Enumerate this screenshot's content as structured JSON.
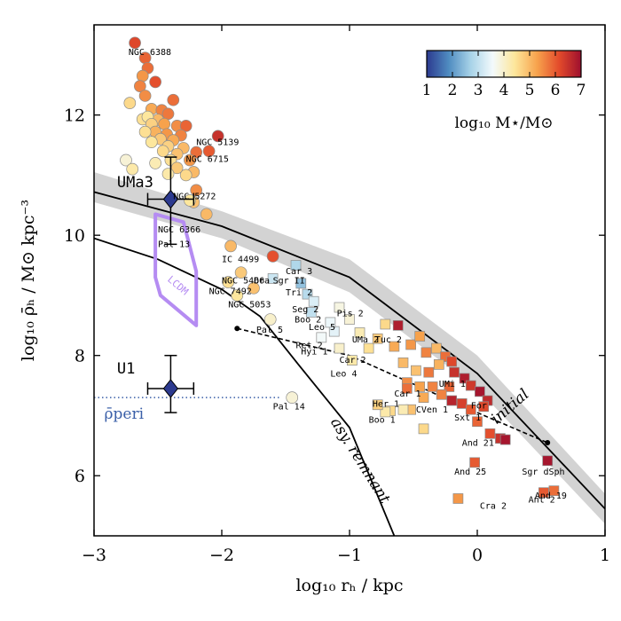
{
  "chart_data": {
    "type": "scatter",
    "xlabel": "log₁₀ rₕ / kpc",
    "ylabel": "log₁₀ ρ̄ₕ / M⊙ kpc⁻³",
    "xlim": [
      -3,
      1
    ],
    "ylim": [
      5,
      13.5
    ],
    "x_ticks": [
      -3,
      -2,
      -1,
      0,
      1
    ],
    "x_tick_labels": [
      "−3",
      "−2",
      "−1",
      "0",
      "1"
    ],
    "y_ticks": [
      6,
      8,
      10,
      12
    ],
    "y_tick_labels": [
      "6",
      "8",
      "10",
      "12"
    ],
    "colorbar": {
      "label": "log₁₀ M⋆/M⊙",
      "min": 1,
      "max": 7,
      "ticks": [
        "1",
        "2",
        "3",
        "4",
        "5",
        "6",
        "7"
      ],
      "colormap": [
        "#2c3a8f",
        "#4f8cc1",
        "#a8d3e8",
        "#f3fafc",
        "#fde69a",
        "#f7a34d",
        "#e34b2b",
        "#9e0f2e"
      ],
      "placement": "top-right"
    },
    "globular_clusters": [
      {
        "x": -2.68,
        "y": 13.2,
        "c": 6.2
      },
      {
        "x": -2.6,
        "y": 12.95,
        "c": 5.9
      },
      {
        "x": -2.58,
        "y": 12.78,
        "c": 5.8
      },
      {
        "x": -2.62,
        "y": 12.65,
        "c": 5.4
      },
      {
        "x": -2.64,
        "y": 12.48,
        "c": 5.6
      },
      {
        "x": -2.52,
        "y": 12.55,
        "c": 6.1
      },
      {
        "x": -2.6,
        "y": 12.32,
        "c": 5.5
      },
      {
        "x": -2.38,
        "y": 12.25,
        "c": 5.8
      },
      {
        "x": -2.72,
        "y": 12.2,
        "c": 4.6
      },
      {
        "x": -2.55,
        "y": 12.1,
        "c": 5.2
      },
      {
        "x": -2.47,
        "y": 12.08,
        "c": 5.6
      },
      {
        "x": -2.42,
        "y": 12.02,
        "c": 5.7
      },
      {
        "x": -2.5,
        "y": 11.92,
        "c": 5.0
      },
      {
        "x": -2.62,
        "y": 11.93,
        "c": 4.5
      },
      {
        "x": -2.58,
        "y": 11.97,
        "c": 4.4
      },
      {
        "x": -2.55,
        "y": 11.85,
        "c": 4.7
      },
      {
        "x": -2.45,
        "y": 11.85,
        "c": 5.3
      },
      {
        "x": -2.35,
        "y": 11.82,
        "c": 5.5
      },
      {
        "x": -2.28,
        "y": 11.82,
        "c": 5.9
      },
      {
        "x": -2.52,
        "y": 11.72,
        "c": 5.1
      },
      {
        "x": -2.6,
        "y": 11.72,
        "c": 4.5
      },
      {
        "x": -2.43,
        "y": 11.68,
        "c": 5.4
      },
      {
        "x": -2.32,
        "y": 11.66,
        "c": 5.6
      },
      {
        "x": -2.48,
        "y": 11.6,
        "c": 4.8
      },
      {
        "x": -2.38,
        "y": 11.58,
        "c": 5.2
      },
      {
        "x": -2.55,
        "y": 11.55,
        "c": 4.4
      },
      {
        "x": -2.42,
        "y": 11.48,
        "c": 4.7
      },
      {
        "x": -2.3,
        "y": 11.45,
        "c": 5.0
      },
      {
        "x": -2.46,
        "y": 11.4,
        "c": 4.6
      },
      {
        "x": -2.35,
        "y": 11.35,
        "c": 4.9
      },
      {
        "x": -2.2,
        "y": 11.38,
        "c": 5.8
      },
      {
        "x": -2.25,
        "y": 11.25,
        "c": 5.4
      },
      {
        "x": -2.4,
        "y": 11.25,
        "c": 4.5
      },
      {
        "x": -2.52,
        "y": 11.2,
        "c": 4.2
      },
      {
        "x": -2.75,
        "y": 11.25,
        "c": 3.9
      },
      {
        "x": -2.7,
        "y": 11.1,
        "c": 4.3
      },
      {
        "x": -2.35,
        "y": 11.12,
        "c": 4.8
      },
      {
        "x": -2.22,
        "y": 11.05,
        "c": 5.0
      },
      {
        "x": -2.28,
        "y": 11.0,
        "c": 4.6
      },
      {
        "x": -2.42,
        "y": 11.02,
        "c": 4.3
      },
      {
        "x": -2.2,
        "y": 10.75,
        "c": 5.5
      },
      {
        "x": -2.22,
        "y": 10.55,
        "c": 4.9
      },
      {
        "x": -2.25,
        "y": 10.58,
        "c": 4.4
      },
      {
        "x": -2.12,
        "y": 10.35,
        "c": 5.0
      },
      {
        "x": -1.93,
        "y": 9.82,
        "c": 5.0
      },
      {
        "x": -1.85,
        "y": 9.38,
        "c": 4.8
      },
      {
        "x": -1.95,
        "y": 9.22,
        "c": 4.5
      },
      {
        "x": -1.75,
        "y": 9.12,
        "c": 4.9
      },
      {
        "x": -1.88,
        "y": 9.0,
        "c": 4.4
      },
      {
        "x": -1.62,
        "y": 8.6,
        "c": 4.0
      },
      {
        "x": -1.45,
        "y": 7.3,
        "c": 3.9
      },
      {
        "x": -2.03,
        "y": 11.65,
        "c": 6.5
      },
      {
        "x": -2.1,
        "y": 11.4,
        "c": 6.0
      },
      {
        "x": -1.6,
        "y": 9.65,
        "c": 6.1
      }
    ],
    "dwarf_galaxies": [
      {
        "x": -1.6,
        "y": 9.28,
        "c": 3.1
      },
      {
        "x": -1.42,
        "y": 9.5,
        "c": 2.8
      },
      {
        "x": -1.38,
        "y": 9.2,
        "c": 2.5
      },
      {
        "x": -1.33,
        "y": 9.02,
        "c": 2.9
      },
      {
        "x": -1.28,
        "y": 8.9,
        "c": 3.3
      },
      {
        "x": -1.3,
        "y": 8.72,
        "c": 3.0
      },
      {
        "x": -1.08,
        "y": 8.8,
        "c": 3.8
      },
      {
        "x": -1.0,
        "y": 8.6,
        "c": 3.9
      },
      {
        "x": -1.12,
        "y": 8.4,
        "c": 3.4
      },
      {
        "x": -1.22,
        "y": 8.3,
        "c": 3.6
      },
      {
        "x": -1.15,
        "y": 8.55,
        "c": 3.5
      },
      {
        "x": -1.08,
        "y": 8.12,
        "c": 4.0
      },
      {
        "x": -0.92,
        "y": 8.38,
        "c": 4.2
      },
      {
        "x": -0.85,
        "y": 8.12,
        "c": 4.5
      },
      {
        "x": -0.98,
        "y": 7.92,
        "c": 4.3
      },
      {
        "x": -0.72,
        "y": 8.52,
        "c": 4.6
      },
      {
        "x": -0.78,
        "y": 8.28,
        "c": 4.8
      },
      {
        "x": -0.62,
        "y": 8.5,
        "c": 6.8
      },
      {
        "x": -0.65,
        "y": 8.15,
        "c": 5.2
      },
      {
        "x": -0.58,
        "y": 7.88,
        "c": 5.0
      },
      {
        "x": -0.52,
        "y": 8.18,
        "c": 5.4
      },
      {
        "x": -0.45,
        "y": 8.32,
        "c": 5.3
      },
      {
        "x": -0.4,
        "y": 8.05,
        "c": 5.6
      },
      {
        "x": -0.32,
        "y": 8.12,
        "c": 5.0
      },
      {
        "x": -0.25,
        "y": 7.98,
        "c": 5.8
      },
      {
        "x": -0.2,
        "y": 7.9,
        "c": 6.2
      },
      {
        "x": -0.3,
        "y": 7.85,
        "c": 5.1
      },
      {
        "x": -0.38,
        "y": 7.72,
        "c": 5.7
      },
      {
        "x": -0.48,
        "y": 7.75,
        "c": 4.9
      },
      {
        "x": -0.55,
        "y": 7.55,
        "c": 5.5
      },
      {
        "x": -0.45,
        "y": 7.48,
        "c": 5.3
      },
      {
        "x": -0.35,
        "y": 7.48,
        "c": 5.6
      },
      {
        "x": -0.18,
        "y": 7.72,
        "c": 6.5
      },
      {
        "x": -0.1,
        "y": 7.62,
        "c": 6.8
      },
      {
        "x": -0.05,
        "y": 7.5,
        "c": 6.4
      },
      {
        "x": -0.22,
        "y": 7.48,
        "c": 5.9
      },
      {
        "x": -0.28,
        "y": 7.35,
        "c": 5.6
      },
      {
        "x": -0.42,
        "y": 7.3,
        "c": 5.2
      },
      {
        "x": -0.2,
        "y": 7.25,
        "c": 6.7
      },
      {
        "x": -0.12,
        "y": 7.2,
        "c": 6.3
      },
      {
        "x": 0.02,
        "y": 7.4,
        "c": 6.9
      },
      {
        "x": 0.08,
        "y": 7.25,
        "c": 6.6
      },
      {
        "x": -0.05,
        "y": 7.1,
        "c": 6.0
      },
      {
        "x": -0.55,
        "y": 7.45,
        "c": 5.8
      },
      {
        "x": -0.52,
        "y": 7.1,
        "c": 4.9
      },
      {
        "x": -0.58,
        "y": 7.1,
        "c": 4.2
      },
      {
        "x": -0.68,
        "y": 7.08,
        "c": 4.6
      },
      {
        "x": -0.72,
        "y": 7.06,
        "c": 4.3
      },
      {
        "x": -0.78,
        "y": 7.18,
        "c": 4.7
      },
      {
        "x": -0.42,
        "y": 6.78,
        "c": 4.6
      },
      {
        "x": 0.05,
        "y": 7.15,
        "c": 6.2
      },
      {
        "x": 0.0,
        "y": 6.9,
        "c": 5.9
      },
      {
        "x": 0.1,
        "y": 6.7,
        "c": 6.1
      },
      {
        "x": 0.18,
        "y": 6.62,
        "c": 6.5
      },
      {
        "x": 0.22,
        "y": 6.6,
        "c": 6.9
      },
      {
        "x": 0.55,
        "y": 6.25,
        "c": 6.9
      },
      {
        "x": -0.02,
        "y": 6.22,
        "c": 6.0
      },
      {
        "x": 0.52,
        "y": 5.72,
        "c": 6.0
      },
      {
        "x": 0.6,
        "y": 5.75,
        "c": 5.8
      },
      {
        "x": -0.15,
        "y": 5.62,
        "c": 5.4
      }
    ],
    "named_points": [
      {
        "label": "UMa3",
        "x": -2.4,
        "y": 10.6,
        "xerr": 0.18,
        "yerr_up": 0.7,
        "yerr_down": 0.75,
        "color": "#2c3a8f"
      },
      {
        "label": "U1",
        "x": -2.4,
        "y": 7.45,
        "xerr": 0.18,
        "yerr_up": 0.55,
        "yerr_down": 0.4,
        "color": "#2c3a8f"
      }
    ],
    "annotations": [
      {
        "text": "NGC 6388",
        "x": -2.73,
        "y": 13.0,
        "size": "small"
      },
      {
        "text": "NGC 5139",
        "x": -2.2,
        "y": 11.5,
        "size": "small"
      },
      {
        "text": "NGC 6715",
        "x": -2.28,
        "y": 11.22,
        "size": "small"
      },
      {
        "text": "NGC 5272",
        "x": -2.38,
        "y": 10.6,
        "size": "small"
      },
      {
        "text": "UMa3",
        "x": -2.82,
        "y": 10.8,
        "size": "large"
      },
      {
        "text": "NGC 6366",
        "x": -2.5,
        "y": 10.05,
        "size": "small"
      },
      {
        "text": "Pal 13",
        "x": -2.5,
        "y": 9.8,
        "size": "small"
      },
      {
        "text": "IC 4499",
        "x": -2.0,
        "y": 9.55,
        "size": "small"
      },
      {
        "text": "NGC 5466",
        "x": -2.0,
        "y": 9.2,
        "size": "small"
      },
      {
        "text": "NGC 7492",
        "x": -2.1,
        "y": 9.02,
        "size": "small"
      },
      {
        "text": "NGC 5053",
        "x": -1.95,
        "y": 8.8,
        "size": "small"
      },
      {
        "text": "Dra",
        "x": -1.75,
        "y": 9.2,
        "size": "small"
      },
      {
        "text": "Car 3",
        "x": -1.5,
        "y": 9.35,
        "size": "small"
      },
      {
        "text": "Sgr II",
        "x": -1.6,
        "y": 9.2,
        "size": "small"
      },
      {
        "text": "Tri 2",
        "x": -1.5,
        "y": 9.0,
        "size": "small"
      },
      {
        "text": "Seg 2",
        "x": -1.45,
        "y": 8.72,
        "size": "small"
      },
      {
        "text": "Pis 2",
        "x": -1.1,
        "y": 8.65,
        "size": "small"
      },
      {
        "text": "Boo 2",
        "x": -1.43,
        "y": 8.55,
        "size": "small"
      },
      {
        "text": "Leo 5",
        "x": -1.32,
        "y": 8.42,
        "size": "small"
      },
      {
        "text": "Pal 5",
        "x": -1.73,
        "y": 8.38,
        "size": "small"
      },
      {
        "text": "UMa 2",
        "x": -0.98,
        "y": 8.22,
        "size": "small"
      },
      {
        "text": "Tuc 2",
        "x": -0.8,
        "y": 8.22,
        "size": "small"
      },
      {
        "text": "Ret 2",
        "x": -1.42,
        "y": 8.12,
        "size": "small"
      },
      {
        "text": "Hyi 1",
        "x": -1.38,
        "y": 8.02,
        "size": "small"
      },
      {
        "text": "Car 2",
        "x": -1.08,
        "y": 7.88,
        "size": "small"
      },
      {
        "text": "Leo 4",
        "x": -1.15,
        "y": 7.65,
        "size": "small"
      },
      {
        "text": "Pal 14",
        "x": -1.6,
        "y": 7.1,
        "size": "small"
      },
      {
        "text": "UMi 1",
        "x": -0.3,
        "y": 7.48,
        "size": "small"
      },
      {
        "text": "Car 1",
        "x": -0.65,
        "y": 7.32,
        "size": "small"
      },
      {
        "text": "Her 1",
        "x": -0.82,
        "y": 7.15,
        "size": "small"
      },
      {
        "text": "CVen 1",
        "x": -0.48,
        "y": 7.05,
        "size": "small"
      },
      {
        "text": "Boo 1",
        "x": -0.85,
        "y": 6.88,
        "size": "small"
      },
      {
        "text": "Sxt 1",
        "x": -0.18,
        "y": 6.92,
        "size": "small"
      },
      {
        "text": "For",
        "x": -0.05,
        "y": 7.12,
        "size": "small"
      },
      {
        "text": "And 21",
        "x": -0.12,
        "y": 6.5,
        "size": "small"
      },
      {
        "text": "Sgr dSph",
        "x": 0.35,
        "y": 6.02,
        "size": "small"
      },
      {
        "text": "And 25",
        "x": -0.18,
        "y": 6.02,
        "size": "small"
      },
      {
        "text": "And 19",
        "x": 0.45,
        "y": 5.62,
        "size": "small"
      },
      {
        "text": "Ant 2",
        "x": 0.4,
        "y": 5.55,
        "size": "small"
      },
      {
        "text": "Cra 2",
        "x": 0.02,
        "y": 5.45,
        "size": "small"
      },
      {
        "text": "U1",
        "x": -2.82,
        "y": 7.7,
        "size": "large"
      }
    ],
    "curves": {
      "initial_band_upper": [
        [
          -3,
          11.05
        ],
        [
          -2,
          10.4
        ],
        [
          -1,
          9.6
        ],
        [
          0,
          8.0
        ],
        [
          1,
          5.7
        ]
      ],
      "initial_band_lower": [
        [
          -3,
          10.55
        ],
        [
          -2,
          9.95
        ],
        [
          -1,
          9.05
        ],
        [
          0,
          7.45
        ],
        [
          1,
          5.2
        ]
      ],
      "initial": [
        [
          -3,
          10.72
        ],
        [
          -2,
          10.15
        ],
        [
          -1,
          9.3
        ],
        [
          0,
          7.7
        ],
        [
          1,
          5.45
        ]
      ],
      "lower": [
        [
          -3,
          9.95
        ],
        [
          -2.5,
          9.6
        ],
        [
          -2,
          9.1
        ],
        [
          -1.7,
          8.65
        ],
        [
          -1.4,
          7.85
        ],
        [
          -1.0,
          6.8
        ],
        [
          -0.65,
          5.0
        ]
      ],
      "dashed": [
        [
          -1.88,
          8.45
        ],
        [
          -1.0,
          8.0
        ],
        [
          0.0,
          7.05
        ],
        [
          0.55,
          6.55
        ]
      ],
      "lcdm_polygon": [
        [
          -2.52,
          10.35
        ],
        [
          -2.3,
          10.22
        ],
        [
          -2.2,
          9.4
        ],
        [
          -2.2,
          8.5
        ],
        [
          -2.48,
          9.0
        ],
        [
          -2.52,
          9.3
        ]
      ],
      "rho_peri": 7.3,
      "rho_peri_x_end": -1.55,
      "dot_left": [
        -1.88,
        8.45
      ],
      "dot_right": [
        0.55,
        6.55
      ]
    },
    "labels": {
      "initial": "initial",
      "asy_remnant": "asy. remnant",
      "lcdm": "LCDM",
      "rho_peri": "ρ̄peri"
    }
  }
}
